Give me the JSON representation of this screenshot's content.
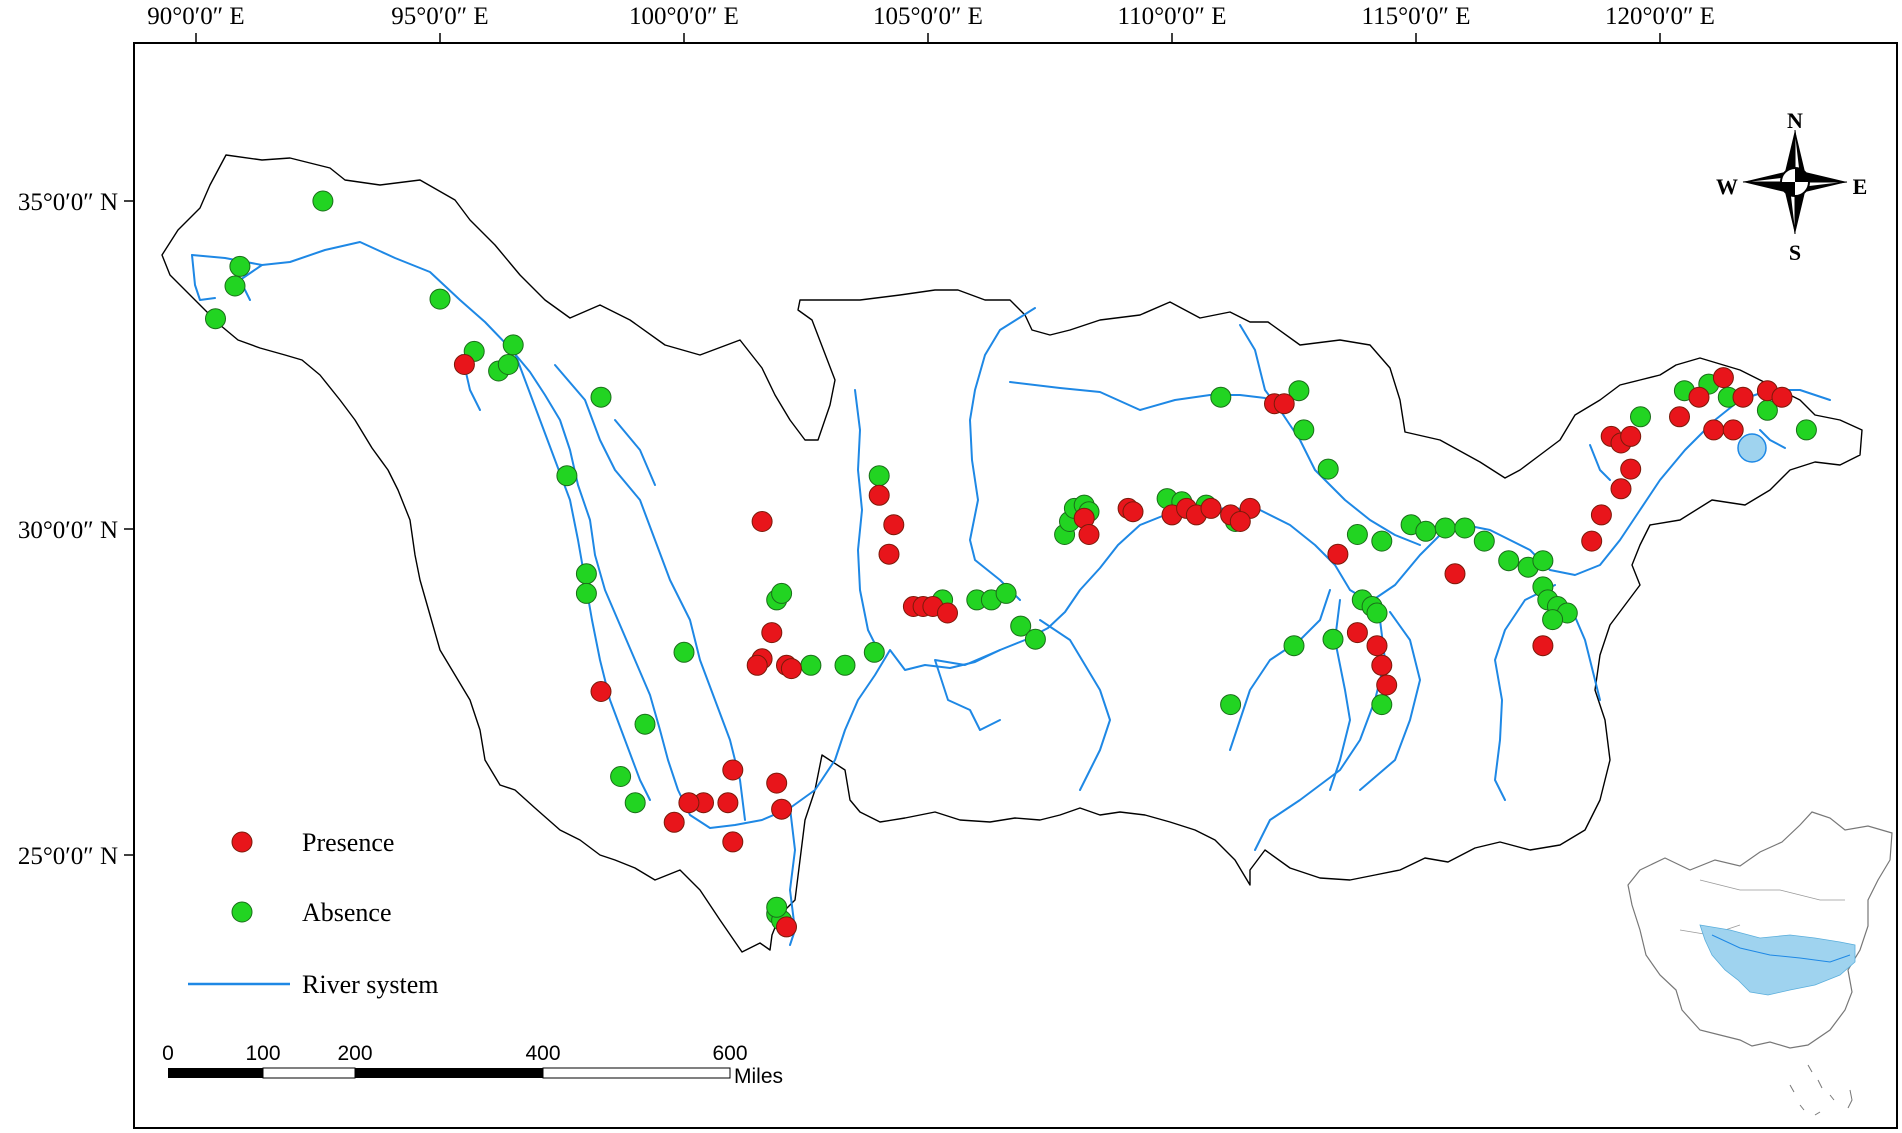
{
  "longitude_labels": [
    "90°0′0″ E",
    "95°0′0″ E",
    "100°0′0″ E",
    "105°0′0″ E",
    "110°0′0″ E",
    "115°0′0″ E",
    "120°0′0″ E"
  ],
  "latitude_labels": [
    "35°0′0″ N",
    "30°0′0″ N",
    "25°0′0″ N"
  ],
  "legend": {
    "presence": "Presence",
    "absence": "Absence",
    "river": "River system"
  },
  "scale_bar": {
    "ticks": [
      "0",
      "100",
      "200",
      "400",
      "600"
    ],
    "unit": "Miles"
  },
  "compass": {
    "n": "N",
    "s": "S",
    "e": "E",
    "w": "W"
  },
  "colors": {
    "presence": "#e8151b",
    "absence": "#22d422",
    "river": "#1e88e5",
    "boundary": "#000000",
    "inset_basin": "#9fd3ef"
  },
  "markers": {
    "presence": [
      [
        108.2,
        30.15
      ],
      [
        108.3,
        29.9
      ],
      [
        109.1,
        30.3
      ],
      [
        110.0,
        30.2
      ],
      [
        110.3,
        30.3
      ],
      [
        110.5,
        30.2
      ],
      [
        110.8,
        30.3
      ],
      [
        111.2,
        30.2
      ],
      [
        111.6,
        30.3
      ],
      [
        111.4,
        30.1
      ],
      [
        109.2,
        30.25
      ],
      [
        112.1,
        31.9
      ],
      [
        112.3,
        31.9
      ],
      [
        113.4,
        29.6
      ],
      [
        113.8,
        28.4
      ],
      [
        114.2,
        28.2
      ],
      [
        114.3,
        27.9
      ],
      [
        114.4,
        27.6
      ],
      [
        115.8,
        29.3
      ],
      [
        117.6,
        28.2
      ],
      [
        118.6,
        29.8
      ],
      [
        118.8,
        30.2
      ],
      [
        119.2,
        30.6
      ],
      [
        119.4,
        30.9
      ],
      [
        119.0,
        31.4
      ],
      [
        119.2,
        31.3
      ],
      [
        119.4,
        31.4
      ],
      [
        120.4,
        31.7
      ],
      [
        120.8,
        32.0
      ],
      [
        121.1,
        31.5
      ],
      [
        121.5,
        31.5
      ],
      [
        121.3,
        32.3
      ],
      [
        121.7,
        32.0
      ],
      [
        122.2,
        32.1
      ],
      [
        122.5,
        32.0
      ],
      [
        104.7,
        28.8
      ],
      [
        104.9,
        28.8
      ],
      [
        105.1,
        28.8
      ],
      [
        105.4,
        28.7
      ],
      [
        104.2,
        29.6
      ],
      [
        104.3,
        30.05
      ],
      [
        104.0,
        30.5
      ],
      [
        101.6,
        30.1
      ],
      [
        101.8,
        28.4
      ],
      [
        101.6,
        28.0
      ],
      [
        101.5,
        27.9
      ],
      [
        102.1,
        27.9
      ],
      [
        102.2,
        27.85
      ],
      [
        98.3,
        27.5
      ],
      [
        99.8,
        25.5
      ],
      [
        100.4,
        25.8
      ],
      [
        100.9,
        25.8
      ],
      [
        101.0,
        26.3
      ],
      [
        101.0,
        25.2
      ],
      [
        101.9,
        26.1
      ],
      [
        102.0,
        25.7
      ],
      [
        100.1,
        25.8
      ],
      [
        102.1,
        23.9
      ],
      [
        95.5,
        32.5
      ]
    ],
    "absence": [
      [
        92.6,
        35.0
      ],
      [
        90.9,
        34.0
      ],
      [
        90.8,
        33.7
      ],
      [
        90.4,
        33.2
      ],
      [
        95.0,
        33.5
      ],
      [
        95.7,
        32.7
      ],
      [
        96.5,
        32.8
      ],
      [
        96.2,
        32.4
      ],
      [
        96.4,
        32.5
      ],
      [
        98.3,
        32.0
      ],
      [
        97.6,
        30.8
      ],
      [
        98.0,
        29.3
      ],
      [
        98.0,
        29.0
      ],
      [
        100.0,
        28.1
      ],
      [
        99.2,
        27.0
      ],
      [
        98.7,
        26.2
      ],
      [
        99.0,
        25.8
      ],
      [
        101.9,
        24.1
      ],
      [
        102.0,
        24.0
      ],
      [
        101.9,
        24.2
      ],
      [
        101.9,
        28.9
      ],
      [
        102.0,
        29.0
      ],
      [
        102.6,
        27.9
      ],
      [
        103.3,
        27.9
      ],
      [
        103.9,
        28.1
      ],
      [
        104.0,
        30.8
      ],
      [
        105.3,
        28.9
      ],
      [
        106.0,
        28.9
      ],
      [
        106.3,
        28.9
      ],
      [
        106.6,
        29.0
      ],
      [
        106.9,
        28.5
      ],
      [
        107.2,
        28.3
      ],
      [
        107.8,
        29.9
      ],
      [
        107.9,
        30.1
      ],
      [
        108.0,
        30.3
      ],
      [
        108.2,
        30.35
      ],
      [
        108.3,
        30.25
      ],
      [
        109.9,
        30.45
      ],
      [
        110.2,
        30.4
      ],
      [
        110.7,
        30.35
      ],
      [
        111.3,
        30.1
      ],
      [
        111.0,
        32.0
      ],
      [
        112.6,
        32.1
      ],
      [
        112.7,
        31.5
      ],
      [
        113.2,
        30.9
      ],
      [
        113.8,
        29.9
      ],
      [
        114.3,
        29.8
      ],
      [
        114.9,
        30.05
      ],
      [
        115.2,
        29.95
      ],
      [
        115.6,
        30.0
      ],
      [
        116.0,
        30.0
      ],
      [
        116.4,
        29.8
      ],
      [
        116.9,
        29.5
      ],
      [
        117.3,
        29.4
      ],
      [
        117.6,
        29.5
      ],
      [
        117.6,
        29.1
      ],
      [
        117.7,
        28.9
      ],
      [
        117.9,
        28.8
      ],
      [
        118.1,
        28.7
      ],
      [
        117.8,
        28.6
      ],
      [
        113.3,
        28.3
      ],
      [
        112.5,
        28.2
      ],
      [
        113.9,
        28.9
      ],
      [
        114.1,
        28.8
      ],
      [
        114.2,
        28.7
      ],
      [
        114.3,
        27.3
      ],
      [
        111.2,
        27.3
      ],
      [
        119.6,
        31.7
      ],
      [
        120.5,
        32.1
      ],
      [
        121.0,
        32.2
      ],
      [
        121.4,
        32.0
      ],
      [
        122.2,
        31.8
      ],
      [
        123.0,
        31.5
      ]
    ]
  }
}
